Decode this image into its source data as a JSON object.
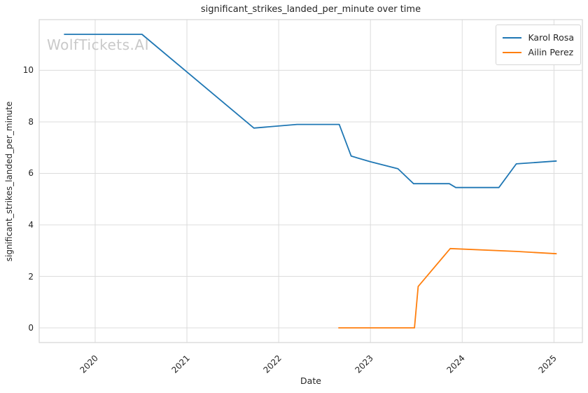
{
  "watermark": {
    "text": "WolfTickets.AI",
    "color": "#c9c9c9"
  },
  "chart_data": {
    "type": "line",
    "title": "significant_strikes_landed_per_minute over time",
    "xlabel": "Date",
    "ylabel": "significant_strikes_landed_per_minute",
    "xlim": [
      2019.39,
      2025.31
    ],
    "ylim": [
      -0.57,
      11.97
    ],
    "xticks": [
      "2020",
      "2021",
      "2022",
      "2023",
      "2024",
      "2025"
    ],
    "xtick_values": [
      2020,
      2021,
      2022,
      2023,
      2024,
      2025
    ],
    "yticks": [
      "0",
      "2",
      "4",
      "6",
      "8",
      "10"
    ],
    "ytick_values": [
      0,
      2,
      4,
      6,
      8,
      10
    ],
    "grid": true,
    "grid_color": "#dcdcdc",
    "spine_color": "#d5d5d5",
    "legend_position": "upper right",
    "series": [
      {
        "name": "Karol Rosa",
        "color": "#1f77b4",
        "x": [
          2019.66,
          2020.51,
          2021.73,
          2022.2,
          2022.66,
          2022.79,
          2023.0,
          2023.3,
          2023.47,
          2023.86,
          2023.93,
          2024.4,
          2024.59,
          2025.03
        ],
        "y": [
          11.4,
          11.4,
          7.76,
          7.9,
          7.9,
          6.67,
          6.45,
          6.18,
          5.6,
          5.6,
          5.45,
          5.45,
          6.37,
          6.48
        ]
      },
      {
        "name": "Ailin Perez",
        "color": "#ff7f0e",
        "x": [
          2022.65,
          2023.48,
          2023.52,
          2023.87,
          2024.59,
          2025.03
        ],
        "y": [
          0.0,
          0.0,
          1.61,
          3.08,
          2.97,
          2.88
        ]
      }
    ]
  }
}
